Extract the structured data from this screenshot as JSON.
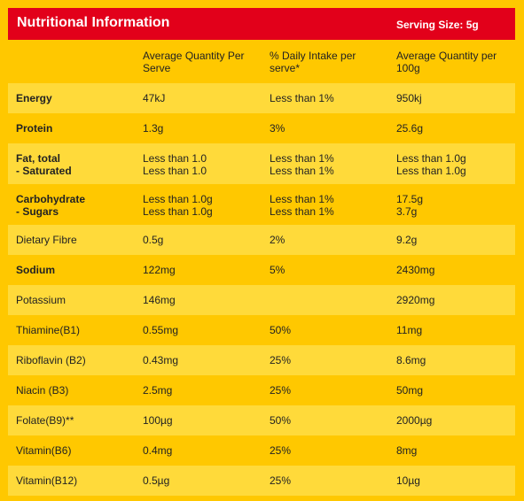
{
  "header": {
    "title": "Nutritional Information",
    "serving_size": "Serving Size: 5g"
  },
  "table": {
    "columns": [
      "Average Quantity Per Serve",
      "% Daily Intake per serve*",
      "Average Quantity per 100g"
    ],
    "rows": [
      {
        "bold": true,
        "cells": [
          [
            "Energy"
          ],
          [
            "47kJ"
          ],
          [
            "Less than 1%"
          ],
          [
            "950kj"
          ]
        ]
      },
      {
        "bold": true,
        "cells": [
          [
            "Protein"
          ],
          [
            "1.3g"
          ],
          [
            "3%"
          ],
          [
            "25.6g"
          ]
        ]
      },
      {
        "bold": true,
        "cells": [
          [
            "Fat, total",
            "- Saturated"
          ],
          [
            "Less than 1.0",
            "Less than 1.0"
          ],
          [
            "Less than 1%",
            "Less than 1%"
          ],
          [
            "Less than 1.0g",
            "Less than 1.0g"
          ]
        ]
      },
      {
        "bold": true,
        "cells": [
          [
            "Carbohydrate",
            "- Sugars"
          ],
          [
            "Less than 1.0g",
            "Less than 1.0g"
          ],
          [
            "Less than 1%",
            "Less than 1%"
          ],
          [
            "17.5g",
            "3.7g"
          ]
        ]
      },
      {
        "bold": false,
        "cells": [
          [
            "Dietary Fibre"
          ],
          [
            "0.5g"
          ],
          [
            "2%"
          ],
          [
            "9.2g"
          ]
        ]
      },
      {
        "bold": true,
        "cells": [
          [
            "Sodium"
          ],
          [
            "122mg"
          ],
          [
            "5%"
          ],
          [
            "2430mg"
          ]
        ]
      },
      {
        "bold": false,
        "cells": [
          [
            "Potassium"
          ],
          [
            "146mg"
          ],
          [],
          [
            "2920mg"
          ]
        ]
      },
      {
        "bold": false,
        "cells": [
          [
            "Thiamine(B1)"
          ],
          [
            "0.55mg"
          ],
          [
            "50%"
          ],
          [
            "11mg"
          ]
        ]
      },
      {
        "bold": false,
        "cells": [
          [
            "Riboflavin (B2)"
          ],
          [
            "0.43mg"
          ],
          [
            "25%"
          ],
          [
            "8.6mg"
          ]
        ]
      },
      {
        "bold": false,
        "cells": [
          [
            "Niacin (B3)"
          ],
          [
            "2.5mg"
          ],
          [
            "25%"
          ],
          [
            "50mg"
          ]
        ]
      },
      {
        "bold": false,
        "cells": [
          [
            "Folate(B9)**"
          ],
          [
            "100µg"
          ],
          [
            "50%"
          ],
          [
            "2000µg"
          ]
        ]
      },
      {
        "bold": false,
        "cells": [
          [
            "Vitamin(B6)"
          ],
          [
            "0.4mg"
          ],
          [
            "25%"
          ],
          [
            "8mg"
          ]
        ]
      },
      {
        "bold": false,
        "cells": [
          [
            "Vitamin(B12)"
          ],
          [
            "0.5µg"
          ],
          [
            "25%"
          ],
          [
            "10µg"
          ]
        ]
      }
    ]
  }
}
